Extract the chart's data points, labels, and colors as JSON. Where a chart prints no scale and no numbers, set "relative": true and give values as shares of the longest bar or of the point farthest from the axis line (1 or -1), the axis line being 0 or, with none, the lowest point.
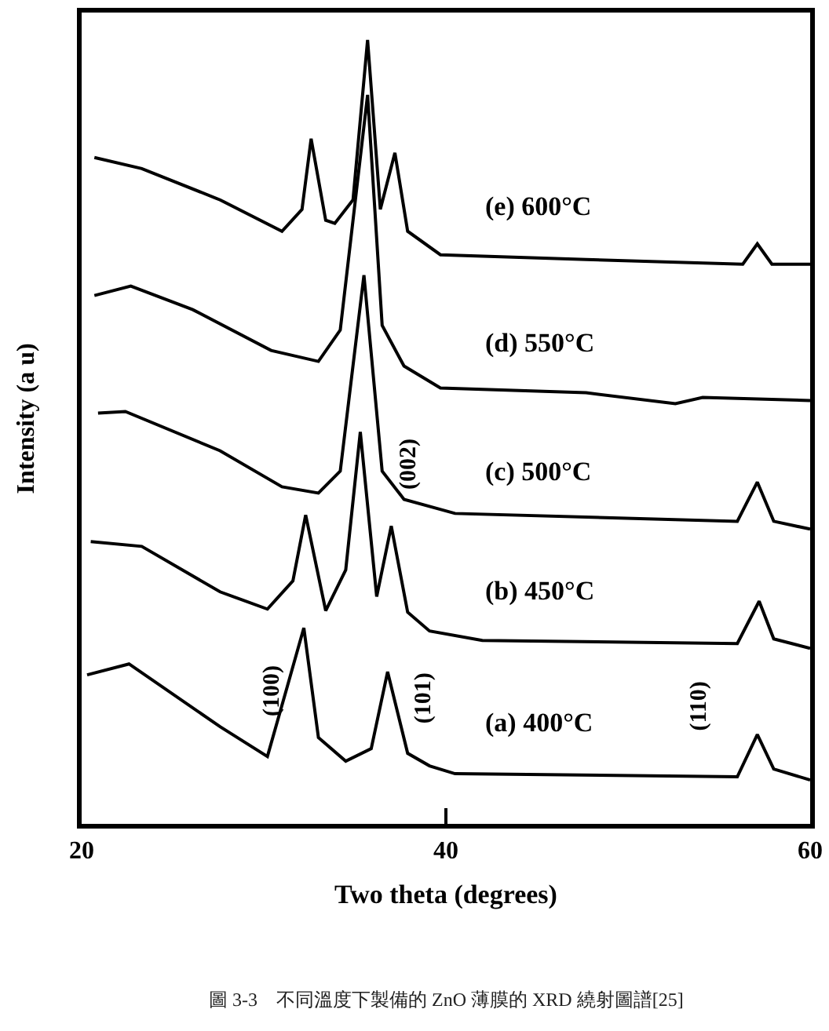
{
  "chart_data": {
    "type": "line",
    "relative": true,
    "xlabel": "Two theta (degrees)",
    "ylabel": "Intensity (a u)",
    "xlim": [
      20,
      60
    ],
    "xticks": [
      20,
      40,
      60
    ],
    "line_style": "solid",
    "annotations": [
      "(100)",
      "(101)",
      "(110)",
      "(002)",
      "圖 3-3　不同溫度下製備的 ZnO 薄膜的 XRD 繞射圖譜[25]"
    ],
    "series": [
      {
        "name": "(a) 400°C",
        "color": "#000000",
        "x": [
          20.3,
          22.6,
          27.6,
          30.2,
          31.3,
          32.2,
          33.0,
          34.5,
          35.9,
          36.8,
          37.9,
          39.1,
          40.5,
          56.0,
          57.1,
          58.0,
          60
        ],
        "values": [
          0.19,
          0.204,
          0.124,
          0.086,
          0.176,
          0.25,
          0.11,
          0.08,
          0.096,
          0.194,
          0.09,
          0.074,
          0.064,
          0.06,
          0.114,
          0.07,
          0.056
        ]
      },
      {
        "name": "(b) 450°C",
        "color": "#000000",
        "x": [
          20.5,
          23.3,
          27.6,
          30.2,
          31.6,
          32.3,
          33.4,
          34.5,
          35.3,
          36.2,
          37.0,
          37.9,
          39.1,
          42.0,
          56.0,
          57.2,
          58.0,
          60
        ],
        "values": [
          0.36,
          0.354,
          0.296,
          0.274,
          0.31,
          0.394,
          0.272,
          0.324,
          0.5,
          0.29,
          0.38,
          0.27,
          0.246,
          0.234,
          0.23,
          0.284,
          0.236,
          0.224
        ]
      },
      {
        "name": "(c) 500°C",
        "color": "#000000",
        "x": [
          20.9,
          22.4,
          27.6,
          31.0,
          33.0,
          34.2,
          35.5,
          36.5,
          37.7,
          40.5,
          56.0,
          57.1,
          58.0,
          60
        ],
        "values": [
          0.524,
          0.526,
          0.476,
          0.43,
          0.422,
          0.45,
          0.7,
          0.45,
          0.414,
          0.396,
          0.386,
          0.436,
          0.386,
          0.376
        ]
      },
      {
        "name": "(d) 550°C",
        "color": "#000000",
        "x": [
          20.7,
          22.7,
          26.1,
          30.4,
          33.0,
          34.2,
          35.7,
          36.5,
          37.7,
          39.7,
          47.7,
          52.6,
          54.1,
          60
        ],
        "values": [
          0.674,
          0.686,
          0.656,
          0.604,
          0.59,
          0.63,
          0.93,
          0.636,
          0.584,
          0.556,
          0.55,
          0.536,
          0.544,
          0.54
        ]
      },
      {
        "name": "(e) 600°C",
        "color": "#000000",
        "x": [
          20.7,
          23.3,
          27.6,
          31.0,
          32.1,
          32.6,
          33.4,
          33.9,
          34.9,
          35.7,
          36.4,
          37.2,
          37.9,
          39.7,
          47.7,
          56.3,
          57.1,
          57.9,
          60
        ],
        "values": [
          0.85,
          0.836,
          0.796,
          0.756,
          0.784,
          0.874,
          0.77,
          0.766,
          0.796,
          1.0,
          0.784,
          0.856,
          0.756,
          0.726,
          0.72,
          0.714,
          0.74,
          0.714,
          0.714
        ]
      }
    ]
  }
}
